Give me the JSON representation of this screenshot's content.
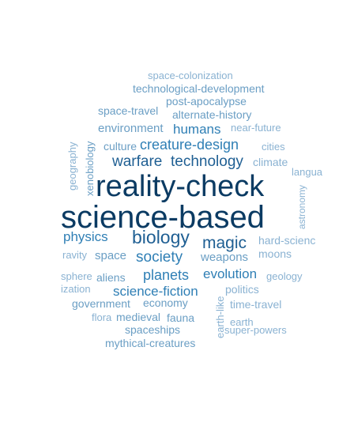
{
  "colors": {
    "darkest": "#0b3b63",
    "dark": "#1f5f93",
    "mid": "#2f7fb5",
    "light": "#6a9ec4",
    "lightest": "#8ab2d2"
  },
  "words": [
    {
      "text": "space-colonization"
    },
    {
      "text": "technological-development"
    },
    {
      "text": "post-apocalypse"
    },
    {
      "text": "space-travel"
    },
    {
      "text": "alternate-history"
    },
    {
      "text": "environment"
    },
    {
      "text": "humans"
    },
    {
      "text": "near-future"
    },
    {
      "text": "culture"
    },
    {
      "text": "creature-design"
    },
    {
      "text": "cities"
    },
    {
      "text": "warfare"
    },
    {
      "text": "technology"
    },
    {
      "text": "climate"
    },
    {
      "text": "langua"
    },
    {
      "text": "geography"
    },
    {
      "text": "xenobiology"
    },
    {
      "text": "reality-check"
    },
    {
      "text": "astronomy"
    },
    {
      "text": "science-based"
    },
    {
      "text": "physics"
    },
    {
      "text": "biology"
    },
    {
      "text": "magic"
    },
    {
      "text": "hard-scienc"
    },
    {
      "text": "ravity"
    },
    {
      "text": "space"
    },
    {
      "text": "society"
    },
    {
      "text": "weapons"
    },
    {
      "text": "moons"
    },
    {
      "text": "sphere"
    },
    {
      "text": "aliens"
    },
    {
      "text": "planets"
    },
    {
      "text": "evolution"
    },
    {
      "text": "geology"
    },
    {
      "text": "ization"
    },
    {
      "text": "science-fiction"
    },
    {
      "text": "politics"
    },
    {
      "text": "government"
    },
    {
      "text": "economy"
    },
    {
      "text": "earth-like"
    },
    {
      "text": "time-travel"
    },
    {
      "text": "flora"
    },
    {
      "text": "medieval"
    },
    {
      "text": "fauna"
    },
    {
      "text": "earth"
    },
    {
      "text": "spaceships"
    },
    {
      "text": "super-powers"
    },
    {
      "text": "mythical-creatures"
    }
  ]
}
